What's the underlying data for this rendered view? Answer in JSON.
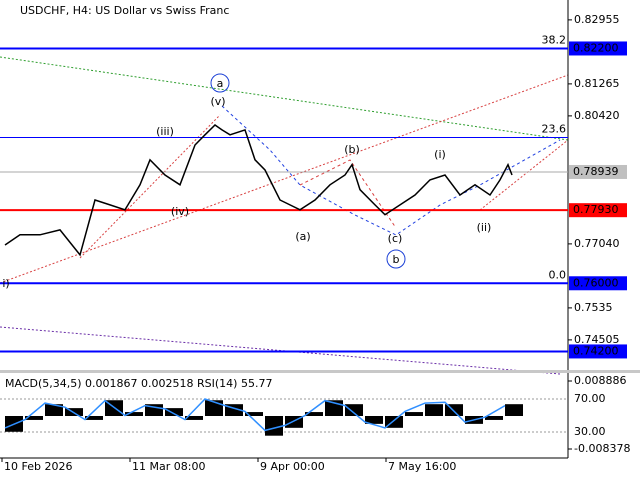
{
  "chart_data": [
    {
      "type": "line",
      "title": "USDCHF, H4:  US Dollar vs Swiss Franc",
      "x": [
        5,
        20,
        40,
        60,
        80,
        95,
        110,
        125,
        140,
        150,
        165,
        180,
        195,
        205,
        215,
        222,
        230,
        245,
        255,
        265,
        280,
        300,
        315,
        330,
        345,
        352,
        360,
        375,
        385,
        400,
        415,
        430,
        445,
        460,
        475,
        490,
        500,
        508,
        512
      ],
      "series": [
        {
          "color": "#000000",
          "values": [
            0.7701,
            0.7728,
            0.7728,
            0.7741,
            0.7675,
            0.782,
            0.7807,
            0.7794,
            0.786,
            0.7926,
            0.7886,
            0.786,
            0.7965,
            0.7992,
            0.8018,
            0.8005,
            0.7992,
            0.8005,
            0.7926,
            0.7899,
            0.782,
            0.7794,
            0.782,
            0.786,
            0.7886,
            0.7913,
            0.7847,
            0.7807,
            0.7781,
            0.7807,
            0.7833,
            0.7873,
            0.7886,
            0.7833,
            0.786,
            0.7833,
            0.7873,
            0.7913,
            0.7886
          ]
        }
      ],
      "xlim": [
        0,
        568
      ],
      "xticks": [
        {
          "value": 2,
          "label": "10 Feb 2026"
        },
        {
          "value": 130,
          "label": "11 Mar 08:00"
        },
        {
          "value": 258,
          "label": "9 Apr 00:00"
        },
        {
          "value": 386,
          "label": "7 May 16:00"
        }
      ],
      "ylim": [
        0.7371,
        0.8348
      ],
      "yticks": [
        0.82955,
        0.81265,
        {
          "value": 0.8042,
          "label": "0.80420"
        },
        {
          "value": 0.7704,
          "label": "0.77040"
        },
        0.7535,
        0.74505
      ],
      "current_price": 0.78939,
      "levels": [
        {
          "value": 0.822,
          "label": "0.82200",
          "fib": "38.2",
          "color": "#0000ff",
          "thick": true
        },
        {
          "value": 0.7985,
          "fib": "23.6",
          "color": "#0000ff",
          "thick": false
        },
        {
          "value": 0.7793,
          "label": "0.77930",
          "color": "#ff0000",
          "thick": true
        },
        {
          "value": 0.76,
          "label": "0.76000",
          "fib": "0.0",
          "color": "#0000ff",
          "thick": true
        },
        {
          "value": 0.742,
          "label": "0.74200",
          "color": "#0000ff",
          "thick": true
        }
      ],
      "annotations": [
        {
          "text": "a",
          "color": "#1a3fd6"
        },
        {
          "text": "(v)",
          "color": "#e0261b"
        },
        {
          "text": "(iii)",
          "color": "#e0261b"
        },
        {
          "text": "(iv)",
          "color": "#e0261b"
        },
        {
          "text": "(a)",
          "color": "#e0261b"
        },
        {
          "text": "(b)",
          "color": "#e0261b"
        },
        {
          "text": "(c)",
          "color": "#e0261b"
        },
        {
          "text": "b",
          "color": "#1a3fd6"
        },
        {
          "text": "(i)",
          "color": "#e0261b"
        },
        {
          "text": "(ii)",
          "color": "#e0261b"
        },
        {
          "text": "i)",
          "color": "#e0261b"
        }
      ]
    },
    {
      "type": "bar",
      "title": "MACD(5,34,5) 0.001867 0.002518 RSI(14) 55.77",
      "x": [
        5,
        25,
        45,
        65,
        85,
        105,
        125,
        145,
        165,
        185,
        205,
        225,
        245,
        265,
        285,
        305,
        325,
        345,
        365,
        385,
        405,
        425,
        445,
        465,
        485,
        505
      ],
      "series": [
        {
          "color": "#000000",
          "values": [
            -0.004,
            -0.001,
            0.003,
            0.002,
            -0.001,
            0.004,
            0.001,
            0.003,
            0.002,
            -0.001,
            0.004,
            0.003,
            0.001,
            -0.005,
            -0.003,
            0.001,
            0.004,
            0.003,
            -0.002,
            -0.003,
            0.001,
            0.003,
            0.003,
            -0.002,
            -0.001,
            0.003
          ]
        },
        {
          "color": "#2f8fff",
          "axis": "y2",
          "values": [
            35,
            45,
            65,
            60,
            45,
            68,
            50,
            62,
            58,
            45,
            70,
            62,
            55,
            32,
            38,
            50,
            68,
            62,
            42,
            35,
            55,
            65,
            66,
            42,
            48,
            62
          ]
        }
      ],
      "xlim": [
        0,
        568
      ],
      "ylim": [
        -0.010663,
        0.010917
      ],
      "yticks": [
        0.008886,
        -0.008378
      ],
      "y2lim": [
        -1.5,
        101.5
      ],
      "y2ticks": [
        {
          "value": 70,
          "label": "70.00"
        },
        {
          "value": 30,
          "label": "30.00"
        }
      ]
    }
  ]
}
